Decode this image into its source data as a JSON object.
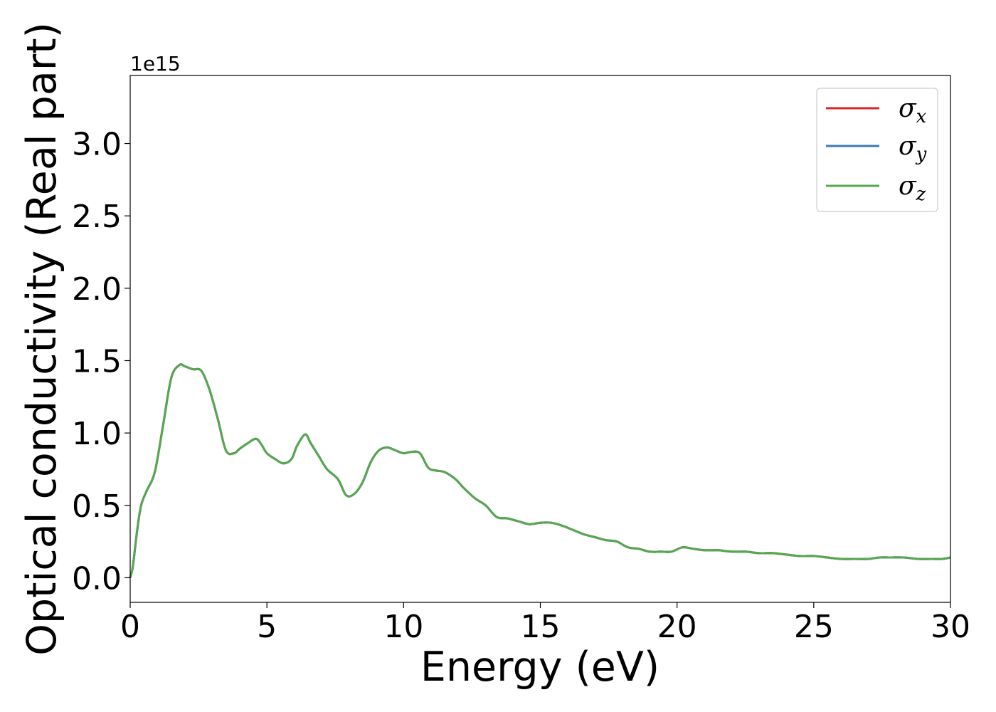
{
  "chart_data": {
    "type": "line",
    "title": "",
    "xlabel": "Energy (eV)",
    "ylabel": "Optical conductivity (Real part)",
    "y_offset_label": "1e15",
    "xlim": [
      0,
      30
    ],
    "ylim": [
      -0.17,
      3.47
    ],
    "x_ticks": [
      0,
      5,
      10,
      15,
      20,
      25,
      30
    ],
    "x_tick_labels": [
      "0",
      "5",
      "10",
      "15",
      "20",
      "25",
      "30"
    ],
    "y_ticks": [
      0.0,
      0.5,
      1.0,
      1.5,
      2.0,
      2.5,
      3.0
    ],
    "y_tick_labels": [
      "0.0",
      "0.5",
      "1.0",
      "1.5",
      "2.0",
      "2.5",
      "3.0"
    ],
    "grid": false,
    "legend_position": "top-right",
    "x": [
      0,
      0.1,
      0.25,
      0.4,
      0.6,
      0.9,
      1.2,
      1.5,
      1.8,
      2.0,
      2.3,
      2.6,
      2.9,
      3.2,
      3.5,
      3.8,
      4.0,
      4.3,
      4.6,
      4.8,
      5.0,
      5.3,
      5.6,
      5.9,
      6.1,
      6.4,
      6.6,
      6.9,
      7.2,
      7.6,
      7.9,
      8.2,
      8.5,
      8.8,
      9.1,
      9.4,
      9.7,
      10.0,
      10.3,
      10.6,
      10.9,
      11.2,
      11.5,
      11.9,
      12.2,
      12.6,
      13.0,
      13.4,
      13.8,
      14.2,
      14.6,
      15.0,
      15.4,
      15.8,
      16.2,
      16.6,
      17.0,
      17.4,
      17.8,
      18.2,
      18.6,
      19.0,
      19.4,
      19.8,
      20.2,
      20.6,
      21.0,
      21.5,
      22.0,
      22.5,
      23.0,
      23.5,
      24.0,
      24.5,
      25.0,
      25.5,
      26.0,
      26.5,
      27.0,
      27.4,
      27.8,
      28.3,
      28.8,
      29.3,
      29.7,
      30.0
    ],
    "series": [
      {
        "name": "σx",
        "color": "#d62728",
        "values": [
          0.0,
          0.08,
          0.32,
          0.5,
          0.6,
          0.73,
          1.05,
          1.38,
          1.47,
          1.46,
          1.44,
          1.43,
          1.3,
          1.1,
          0.88,
          0.86,
          0.89,
          0.93,
          0.96,
          0.92,
          0.86,
          0.82,
          0.79,
          0.82,
          0.91,
          0.99,
          0.93,
          0.84,
          0.75,
          0.68,
          0.57,
          0.58,
          0.66,
          0.8,
          0.88,
          0.9,
          0.88,
          0.86,
          0.87,
          0.86,
          0.76,
          0.74,
          0.73,
          0.68,
          0.62,
          0.55,
          0.5,
          0.42,
          0.41,
          0.39,
          0.37,
          0.38,
          0.38,
          0.36,
          0.33,
          0.3,
          0.28,
          0.26,
          0.25,
          0.21,
          0.2,
          0.18,
          0.18,
          0.18,
          0.21,
          0.2,
          0.19,
          0.19,
          0.18,
          0.18,
          0.17,
          0.17,
          0.16,
          0.15,
          0.15,
          0.14,
          0.13,
          0.13,
          0.13,
          0.14,
          0.14,
          0.14,
          0.13,
          0.13,
          0.13,
          0.14
        ]
      },
      {
        "name": "σy",
        "color": "#3a7bb0",
        "values": [
          0.0,
          0.08,
          0.32,
          0.5,
          0.6,
          0.73,
          1.05,
          1.38,
          1.47,
          1.46,
          1.44,
          1.43,
          1.3,
          1.1,
          0.88,
          0.86,
          0.89,
          0.93,
          0.96,
          0.92,
          0.86,
          0.82,
          0.79,
          0.82,
          0.91,
          0.99,
          0.93,
          0.84,
          0.75,
          0.68,
          0.57,
          0.58,
          0.66,
          0.8,
          0.88,
          0.9,
          0.88,
          0.86,
          0.87,
          0.86,
          0.76,
          0.74,
          0.73,
          0.68,
          0.62,
          0.55,
          0.5,
          0.42,
          0.41,
          0.39,
          0.37,
          0.38,
          0.38,
          0.36,
          0.33,
          0.3,
          0.28,
          0.26,
          0.25,
          0.21,
          0.2,
          0.18,
          0.18,
          0.18,
          0.21,
          0.2,
          0.19,
          0.19,
          0.18,
          0.18,
          0.17,
          0.17,
          0.16,
          0.15,
          0.15,
          0.14,
          0.13,
          0.13,
          0.13,
          0.14,
          0.14,
          0.14,
          0.13,
          0.13,
          0.13,
          0.14
        ]
      },
      {
        "name": "σz",
        "color": "#55a84f",
        "values": [
          0.0,
          0.08,
          0.32,
          0.5,
          0.6,
          0.73,
          1.05,
          1.38,
          1.47,
          1.46,
          1.44,
          1.43,
          1.3,
          1.1,
          0.88,
          0.86,
          0.89,
          0.93,
          0.96,
          0.92,
          0.86,
          0.82,
          0.79,
          0.82,
          0.91,
          0.99,
          0.93,
          0.84,
          0.75,
          0.68,
          0.57,
          0.58,
          0.66,
          0.8,
          0.88,
          0.9,
          0.88,
          0.86,
          0.87,
          0.86,
          0.76,
          0.74,
          0.73,
          0.68,
          0.62,
          0.55,
          0.5,
          0.42,
          0.41,
          0.39,
          0.37,
          0.38,
          0.38,
          0.36,
          0.33,
          0.3,
          0.28,
          0.26,
          0.25,
          0.21,
          0.2,
          0.18,
          0.18,
          0.18,
          0.21,
          0.2,
          0.19,
          0.19,
          0.18,
          0.18,
          0.17,
          0.17,
          0.16,
          0.15,
          0.15,
          0.14,
          0.13,
          0.13,
          0.13,
          0.14,
          0.14,
          0.14,
          0.13,
          0.13,
          0.13,
          0.14
        ]
      }
    ],
    "legend": [
      {
        "symbol": "σ",
        "subscript": "x"
      },
      {
        "symbol": "σ",
        "subscript": "y"
      },
      {
        "symbol": "σ",
        "subscript": "z"
      }
    ]
  }
}
